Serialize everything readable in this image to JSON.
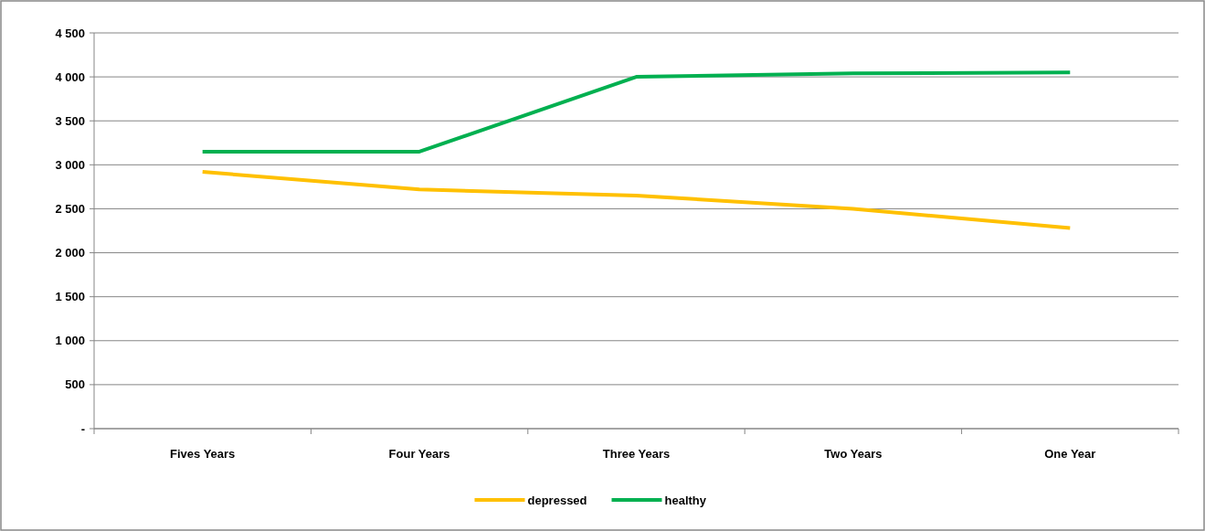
{
  "chart_data": {
    "type": "line",
    "categories": [
      "Fives Years",
      "Four Years",
      "Three Years",
      "Two Years",
      "One Year"
    ],
    "series": [
      {
        "name": "depressed",
        "color": "#ffc000",
        "values": [
          2920,
          2720,
          2650,
          2500,
          2280
        ]
      },
      {
        "name": "healthy",
        "color": "#00b050",
        "values": [
          3150,
          3150,
          4000,
          4040,
          4050
        ]
      }
    ],
    "ylim": [
      0,
      4500
    ],
    "yticks": [
      {
        "value": 0,
        "label": "-"
      },
      {
        "value": 500,
        "label": "500"
      },
      {
        "value": 1000,
        "label": "1 000"
      },
      {
        "value": 1500,
        "label": "1 500"
      },
      {
        "value": 2000,
        "label": "2 000"
      },
      {
        "value": 2500,
        "label": "2 500"
      },
      {
        "value": 3000,
        "label": "3 000"
      },
      {
        "value": 3500,
        "label": "3 500"
      },
      {
        "value": 4000,
        "label": "4 000"
      },
      {
        "value": 4500,
        "label": "4 500"
      }
    ],
    "grid": "y",
    "legend": "bottom",
    "marker": "none",
    "line_style": "solid"
  }
}
